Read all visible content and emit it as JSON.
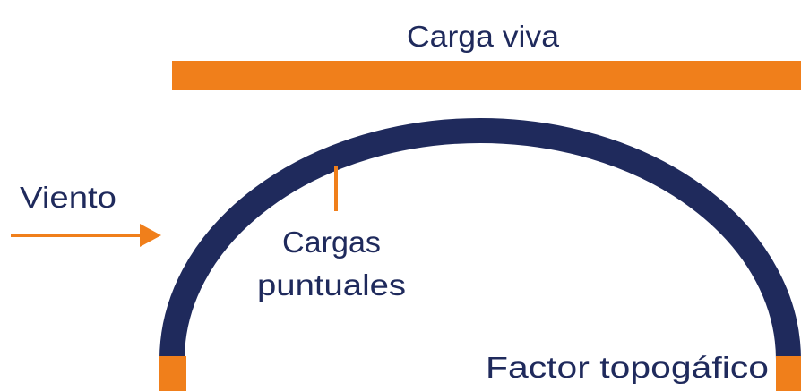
{
  "labels": {
    "top_load": "Carga viva",
    "wind": "Viento",
    "point_loads": [
      "Cargas",
      "puntuales"
    ],
    "topographic": "Factor topogáfico"
  }
}
